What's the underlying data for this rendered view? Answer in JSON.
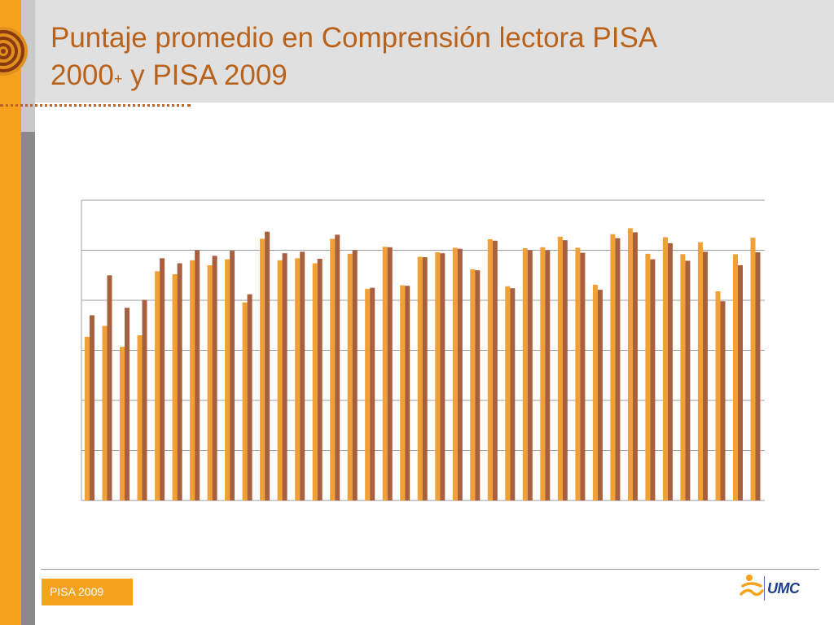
{
  "title": {
    "line1": "Puntaje promedio en Comprensión lectora PISA",
    "line2_a": "2000",
    "line2_sup": "+",
    "line2_b": " y PISA 2009"
  },
  "footer": {
    "badge": "PISA 2009",
    "logo_text": "UMC"
  },
  "colors": {
    "series_2000": "#F0A034",
    "series_2009": "#A8603F",
    "accent": "#F7A21C",
    "title": "#B8621B"
  },
  "chart_data": {
    "type": "bar",
    "title": "",
    "xlabel": "",
    "ylabel": "",
    "ylim": [
      0,
      600
    ],
    "y_gridlines": [
      0,
      100,
      200,
      300,
      400,
      500,
      600
    ],
    "show_tick_labels": false,
    "grid": true,
    "series": [
      {
        "values": [
          327,
          349,
          307,
          330,
          458,
          452,
          480,
          470,
          482,
          396,
          523,
          480,
          484,
          474,
          523,
          493,
          423,
          507,
          430,
          487,
          496,
          505,
          462,
          522,
          428,
          504,
          506,
          527,
          505,
          431,
          532,
          544,
          493,
          526,
          492,
          516,
          418,
          492,
          525
        ]
      },
      {
        "values": [
          370,
          450,
          385,
          401,
          484,
          474,
          500,
          489,
          499,
          412,
          537,
          494,
          497,
          483,
          531,
          500,
          425,
          506,
          429,
          486,
          494,
          503,
          460,
          519,
          424,
          500,
          500,
          520,
          495,
          421,
          524,
          536,
          482,
          514,
          479,
          497,
          398,
          470,
          496
        ]
      }
    ]
  }
}
